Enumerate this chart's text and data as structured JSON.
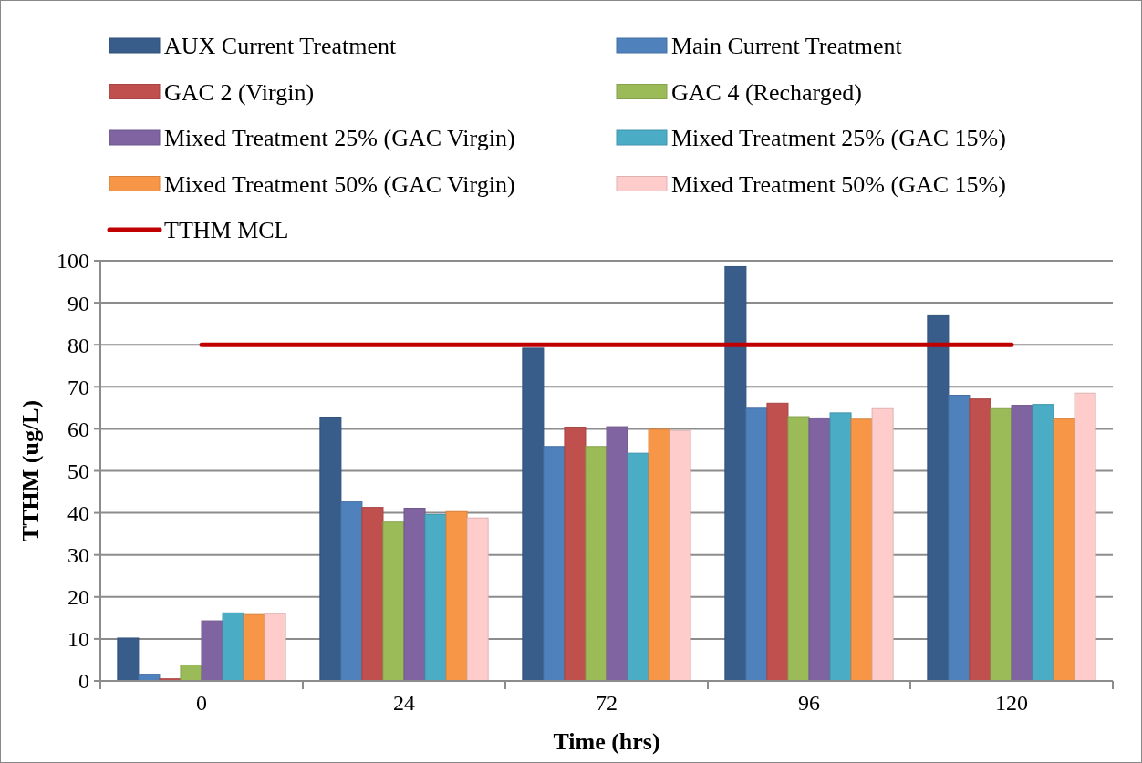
{
  "chart_data": {
    "type": "bar",
    "xlabel": "Time (hrs)",
    "ylabel": "TTHM (ug/L)",
    "categories": [
      "0",
      "24",
      "72",
      "96",
      "120"
    ],
    "series": [
      {
        "name": "AUX Current Treatment",
        "color": "#385d8a",
        "values": [
          10.2,
          62.8,
          79.2,
          98.6,
          86.9
        ]
      },
      {
        "name": "Main Current Treatment",
        "color": "#4f81bd",
        "values": [
          1.6,
          42.6,
          55.8,
          64.9,
          68.0
        ]
      },
      {
        "name": "GAC 2 (Virgin)",
        "color": "#c0504d",
        "values": [
          0.5,
          41.3,
          60.4,
          66.1,
          67.1
        ]
      },
      {
        "name": "GAC 4 (Recharged)",
        "color": "#9bbb59",
        "values": [
          3.8,
          37.8,
          55.8,
          62.9,
          64.8
        ]
      },
      {
        "name": "Mixed Treatment 25% (GAC Virgin)",
        "color": "#8064a2",
        "values": [
          14.3,
          41.1,
          60.5,
          62.6,
          65.6
        ]
      },
      {
        "name": "Mixed Treatment 25% (GAC 15%)",
        "color": "#4bacc6",
        "values": [
          16.2,
          39.6,
          54.2,
          63.8,
          65.8
        ]
      },
      {
        "name": "Mixed Treatment 50% (GAC Virgin)",
        "color": "#f79646",
        "values": [
          15.8,
          40.3,
          59.9,
          62.3,
          62.4
        ]
      },
      {
        "name": "Mixed Treatment 50% (GAC 15%)",
        "color": "#ffcccc",
        "values": [
          16.0,
          38.8,
          59.6,
          64.8,
          68.5
        ]
      },
      {
        "name": "TTHM MCL",
        "type": "line",
        "color": "#c00000",
        "values": [
          80,
          80,
          80,
          80,
          80
        ]
      }
    ],
    "ylim": [
      0,
      100
    ],
    "yticks": [
      0,
      10,
      20,
      30,
      40,
      50,
      60,
      70,
      80,
      90,
      100
    ],
    "grid": "y",
    "legend": "top"
  }
}
